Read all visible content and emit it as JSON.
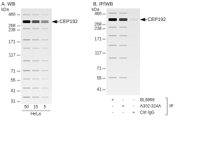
{
  "panels": [
    {
      "label": "A. WB",
      "unit": "kDa",
      "markers": [
        "460",
        "268",
        "238",
        "171",
        "117",
        "71",
        "55",
        "41",
        "31"
      ],
      "target": "CEP192",
      "lanes": [
        "50",
        "15",
        "5"
      ],
      "sample": "HeLa"
    },
    {
      "label": "B. IP/WB",
      "unit": "kDa",
      "markers": [
        "460",
        "268",
        "238",
        "171",
        "117",
        "71",
        "55",
        "41"
      ],
      "target": "CEP192",
      "rows": [
        {
          "name": "BL6868",
          "cells": [
            "+",
            "-",
            "-"
          ]
        },
        {
          "name": "A302-324A",
          "cells": [
            "-",
            "+",
            "-"
          ]
        },
        {
          "name": "Ctrl IgG",
          "cells": [
            "-",
            "-",
            "+"
          ]
        }
      ],
      "group": "IP"
    }
  ]
}
